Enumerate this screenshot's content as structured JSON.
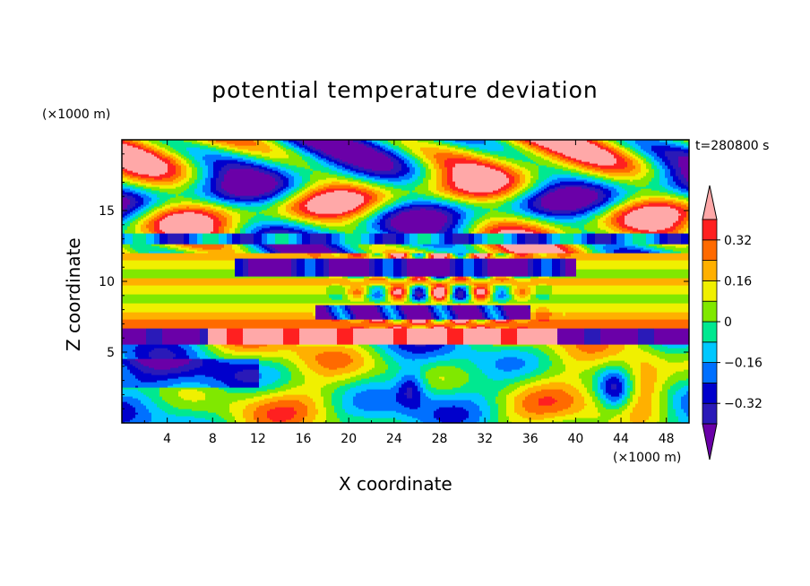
{
  "chart_data": {
    "type": "heatmap",
    "title": "potential temperature deviation",
    "time_label": "t=280800 s",
    "xlabel": "X coordinate",
    "ylabel": "Z coordinate",
    "x_unit": "(×1000 m)",
    "y_unit": "(×1000 m)",
    "xlim": [
      0,
      50
    ],
    "ylim": [
      0,
      20
    ],
    "x_ticks": [
      4,
      8,
      12,
      16,
      20,
      24,
      28,
      32,
      36,
      40,
      44,
      48
    ],
    "y_ticks": [
      5,
      10,
      15
    ],
    "colorbar": {
      "levels": [
        -0.4,
        -0.32,
        -0.24,
        -0.16,
        -0.08,
        0,
        0.08,
        0.16,
        0.24,
        0.32,
        0.4
      ],
      "labels": [
        "0.32",
        "0.16",
        "0",
        "−0.16",
        "−0.32"
      ],
      "label_values": [
        0.32,
        0.16,
        0,
        -0.16,
        -0.32
      ],
      "colors": [
        "#6a00a8",
        "#2a1ab8",
        "#0000cc",
        "#0070ff",
        "#00c8ff",
        "#00e890",
        "#80e800",
        "#f0f000",
        "#ffb000",
        "#ff6a00",
        "#ff2020",
        "#ffa8a8"
      ],
      "extend": "both"
    },
    "field_description_rows": [
      {
        "z_range": [
          0,
          5.6
        ],
        "pattern": "mixed eddies from -0.4 to 0.4"
      },
      {
        "z_range": [
          5.6,
          6.7
        ],
        "pattern": "purple / pink bands near 6 km"
      },
      {
        "z_range": [
          6.7,
          12.0
        ],
        "pattern": "layered 0 to 0.24 bands with turbulent center"
      },
      {
        "z_range": [
          12.0,
          20
        ],
        "pattern": "patchy pink and purple cells"
      }
    ]
  }
}
